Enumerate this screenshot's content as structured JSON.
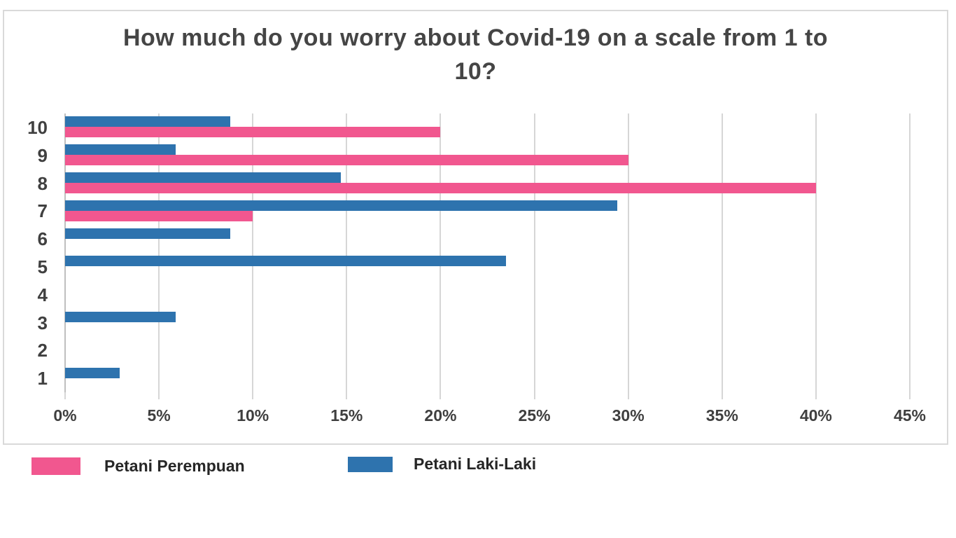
{
  "chart_data": {
    "type": "bar",
    "orientation": "horizontal",
    "title": "How much do you worry about Covid-19 on a scale from 1 to 10?",
    "categories": [
      "10",
      "9",
      "8",
      "7",
      "6",
      "5",
      "4",
      "3",
      "2",
      "1"
    ],
    "series": [
      {
        "name": "Petani Perempuan",
        "color": "#F1578F",
        "values": [
          20,
          30,
          40,
          10,
          0,
          0,
          0,
          0,
          0,
          0
        ]
      },
      {
        "name": "Petani Laki-Laki",
        "color": "#2E73AE",
        "values": [
          8.8,
          5.9,
          14.7,
          29.4,
          8.8,
          23.5,
          0,
          5.9,
          0,
          2.9
        ]
      }
    ],
    "x_axis": {
      "ticks": [
        "0%",
        "5%",
        "10%",
        "15%",
        "20%",
        "25%",
        "30%",
        "35%",
        "40%",
        "45%"
      ],
      "min": 0,
      "max": 45,
      "unit": "%"
    },
    "ylabel": "",
    "xlabel": "",
    "grid": true,
    "legend_position": "bottom-left"
  },
  "colors": {
    "frame_border": "#d9d9d9",
    "gridline": "#d6d6d6",
    "axis_line": "#bfbfbf",
    "title_text": "#454545",
    "tick_text": "#3f3f3f",
    "legend_text": "#262626",
    "background": "#ffffff"
  }
}
